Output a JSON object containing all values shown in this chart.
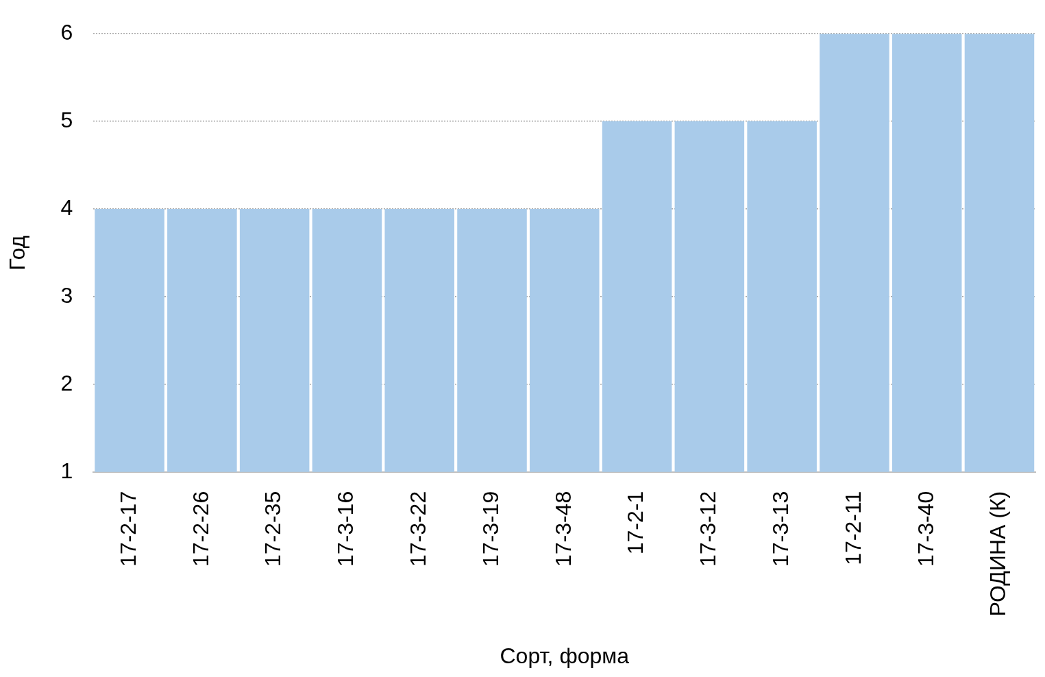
{
  "chart_data": {
    "type": "bar",
    "xlabel": "Сорт, форма",
    "ylabel": "Год",
    "categories": [
      "17-2-17",
      "17-2-26",
      "17-2-35",
      "17-3-16",
      "17-3-22",
      "17-3-19",
      "17-3-48",
      "17-2-1",
      "17-3-12",
      "17-3-13",
      "17-2-11",
      "17-3-40",
      "РОДИНА (К)"
    ],
    "values": [
      4,
      4,
      4,
      4,
      4,
      4,
      4,
      5,
      5,
      5,
      6,
      6,
      6
    ],
    "color": "#a9cbea",
    "ylim": [
      1,
      6
    ],
    "yticks": [
      1,
      2,
      3,
      4,
      5,
      6
    ],
    "grid": "y",
    "legend": false
  }
}
